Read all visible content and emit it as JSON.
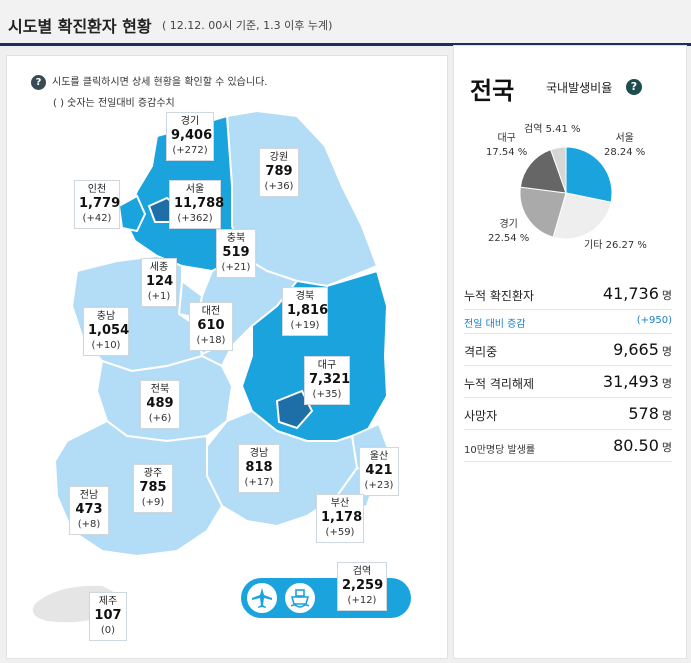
{
  "header": {
    "title": "시도별 확진환자 현황",
    "subtitle": "( 12.12. 00시 기준, 1.3 이후 누계)"
  },
  "map": {
    "help_icon": "?",
    "help_text": "시도를 클릭하시면 상세 현황을 확인할 수 있습니다.",
    "help_note": "( ) 숫자는 전일대비 증감수치",
    "regions": [
      {
        "name": "경기",
        "count": "9,406",
        "delta": "(+272)"
      },
      {
        "name": "강원",
        "count": "789",
        "delta": "(+36)"
      },
      {
        "name": "인천",
        "count": "1,779",
        "delta": "(+42)"
      },
      {
        "name": "서울",
        "count": "11,788",
        "delta": "(+362)"
      },
      {
        "name": "충북",
        "count": "519",
        "delta": "(+21)"
      },
      {
        "name": "세종",
        "count": "124",
        "delta": "(+1)"
      },
      {
        "name": "충남",
        "count": "1,054",
        "delta": "(+10)"
      },
      {
        "name": "대전",
        "count": "610",
        "delta": "(+18)"
      },
      {
        "name": "경북",
        "count": "1,816",
        "delta": "(+19)"
      },
      {
        "name": "전북",
        "count": "489",
        "delta": "(+6)"
      },
      {
        "name": "대구",
        "count": "7,321",
        "delta": "(+35)"
      },
      {
        "name": "경남",
        "count": "818",
        "delta": "(+17)"
      },
      {
        "name": "울산",
        "count": "421",
        "delta": "(+23)"
      },
      {
        "name": "광주",
        "count": "785",
        "delta": "(+9)"
      },
      {
        "name": "전남",
        "count": "473",
        "delta": "(+8)"
      },
      {
        "name": "부산",
        "count": "1,178",
        "delta": "(+59)"
      },
      {
        "name": "검역",
        "count": "2,259",
        "delta": "(+12)"
      },
      {
        "name": "제주",
        "count": "107",
        "delta": "(0)"
      }
    ],
    "transport_icons": [
      "airplane-icon",
      "ship-icon"
    ],
    "colors": {
      "light": "#b3dcf6",
      "medium": "#56b8e8",
      "dark": "#1aa3dd",
      "darkest": "#1e6fa8"
    }
  },
  "side": {
    "title": "전국",
    "ratio_label": "국내발생비율",
    "ratio_help": "?",
    "pie": {
      "slices": [
        {
          "name": "서울",
          "value": 28.24,
          "label": "28.24 %",
          "color": "#1aa3dd"
        },
        {
          "name": "기타",
          "value": 26.27,
          "label": "26.27 %",
          "color": "#eeeeee"
        },
        {
          "name": "경기",
          "value": 22.54,
          "label": "22.54 %",
          "color": "#aaaaaa"
        },
        {
          "name": "대구",
          "value": 17.54,
          "label": "17.54 %",
          "color": "#666666"
        },
        {
          "name": "검역",
          "value": 5.41,
          "label": "5.41 %",
          "color": "#d6d6d6"
        }
      ]
    },
    "stats": {
      "total_label": "누적 확진환자",
      "total_value": "41,736",
      "total_unit": "명",
      "delta_label": "전일 대비 증감",
      "delta_value": "(+950)",
      "isolated_label": "격리중",
      "isolated_value": "9,665",
      "isolated_unit": "명",
      "released_label": "누적 격리해제",
      "released_value": "31,493",
      "released_unit": "명",
      "deaths_label": "사망자",
      "deaths_value": "578",
      "deaths_unit": "명",
      "rate_label": "10만명당 발생률",
      "rate_value": "80.50",
      "rate_unit": "명"
    }
  }
}
